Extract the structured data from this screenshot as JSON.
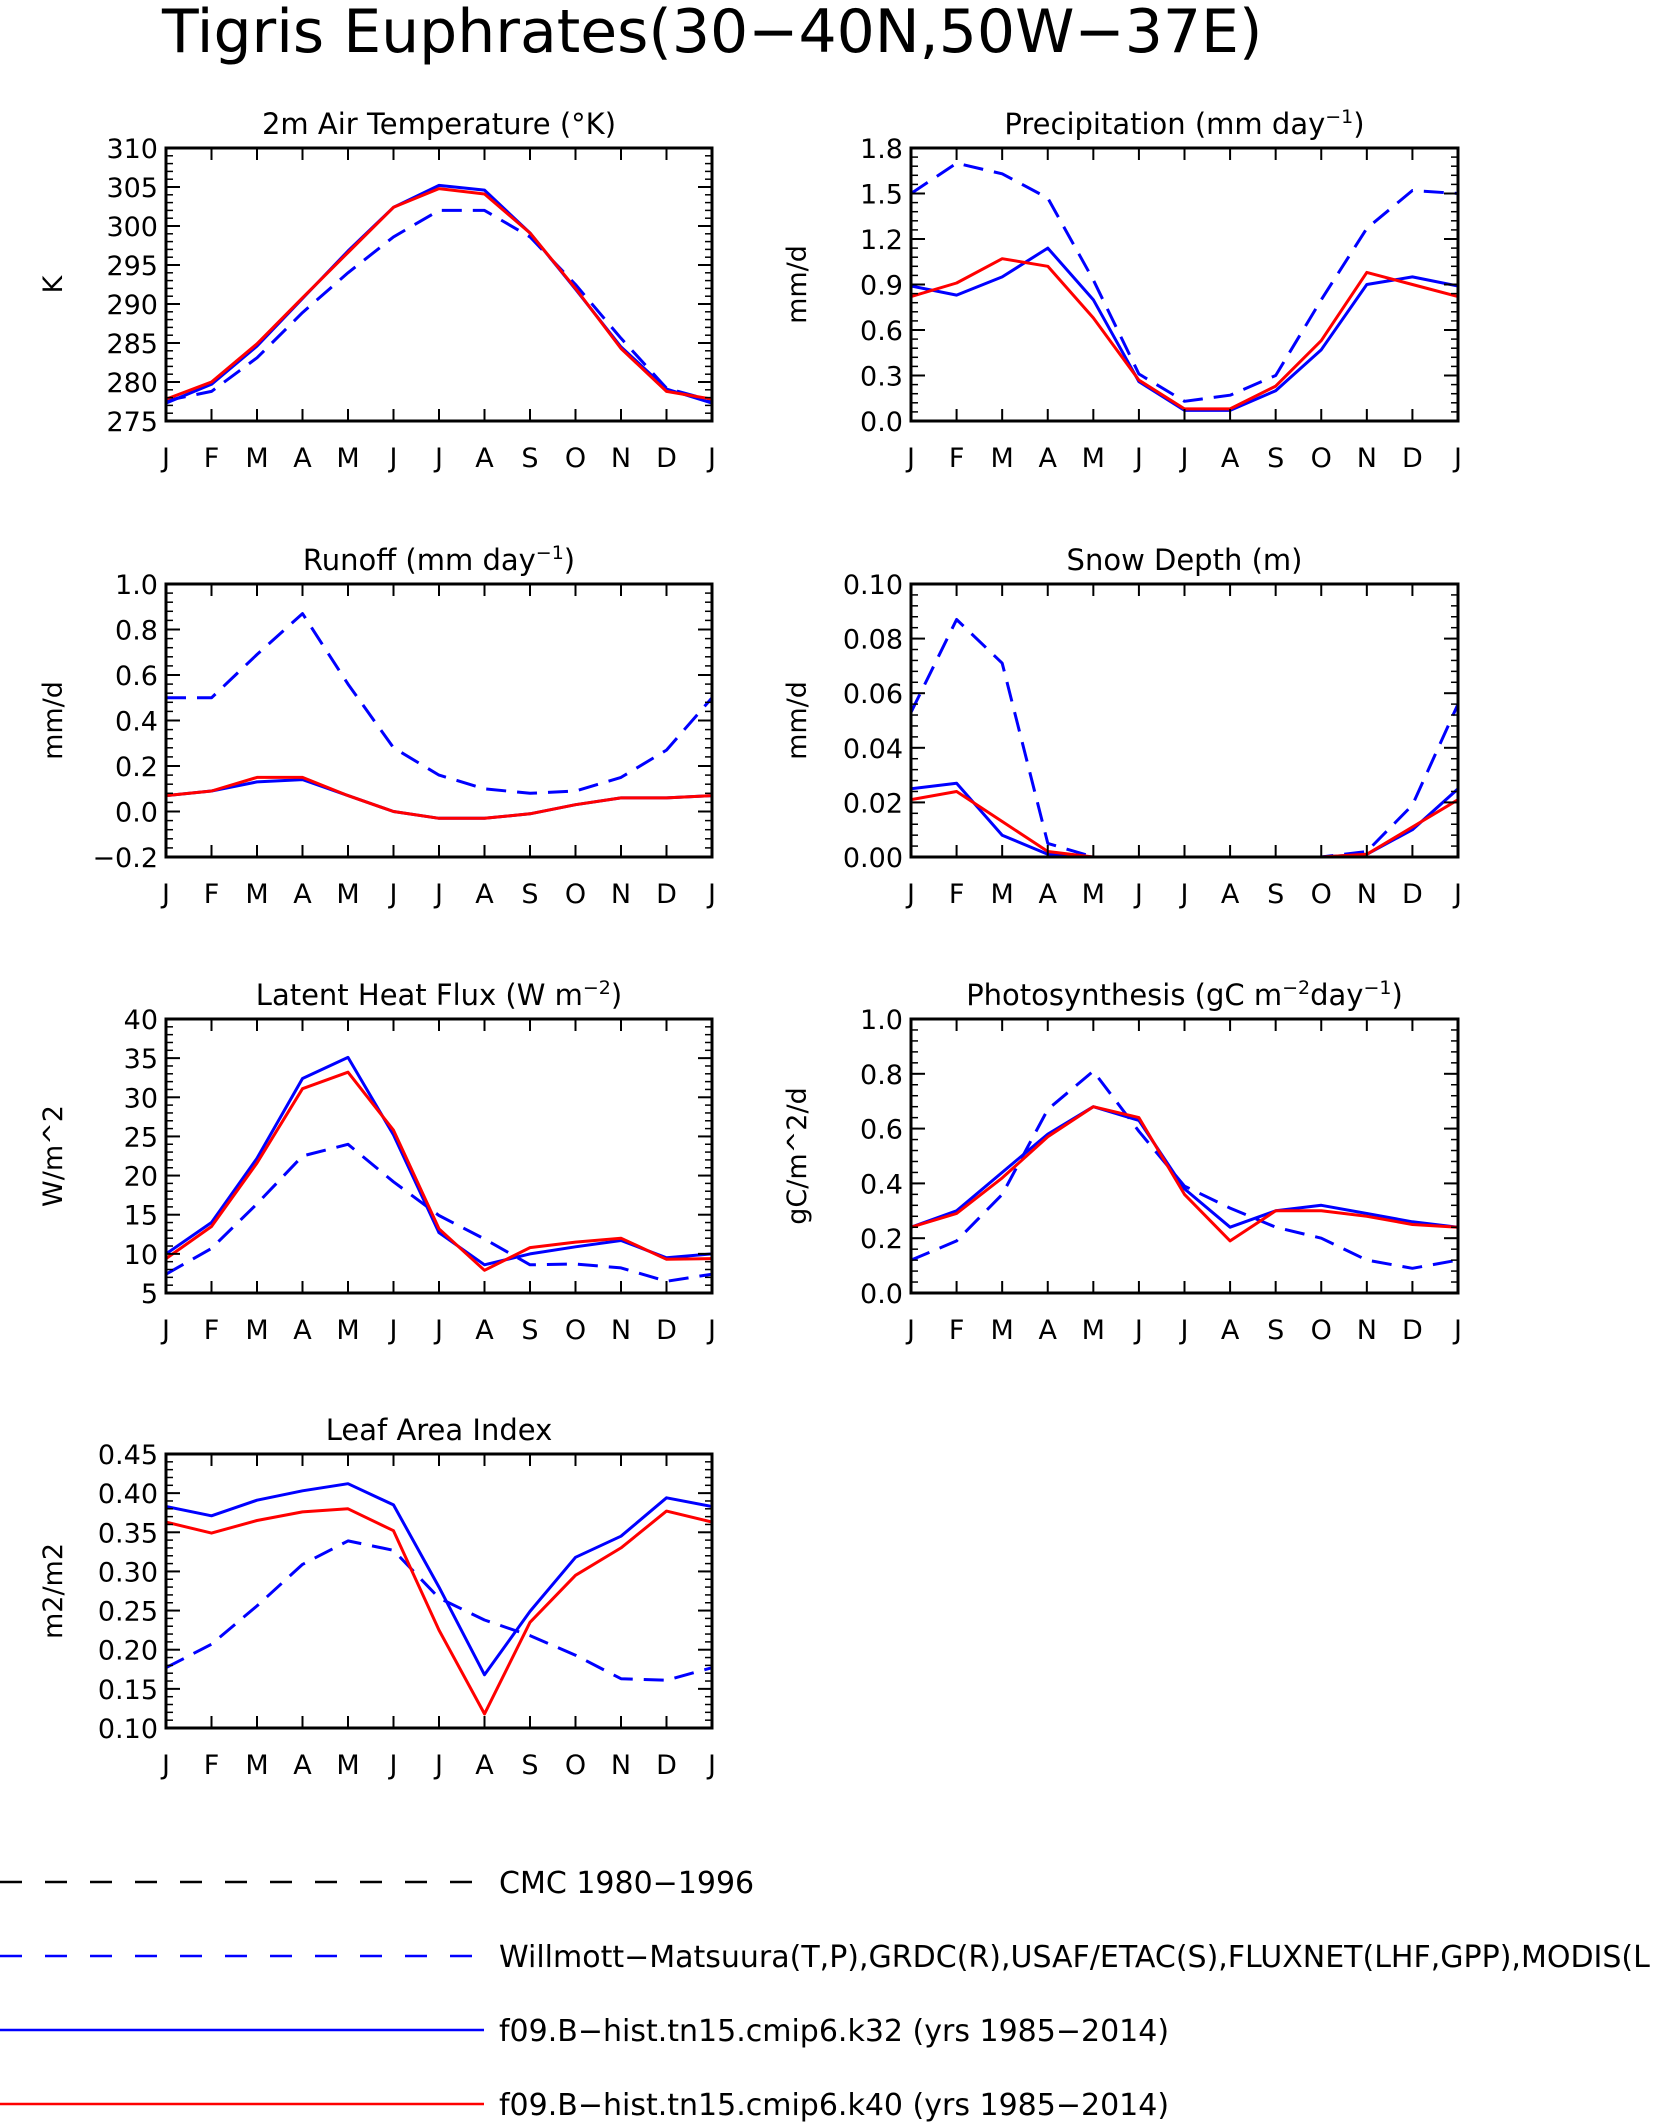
{
  "figure_title": "Tigris Euphrates(30−40N,50W−37E)",
  "legend": [
    {
      "label": "CMC 1980−1996",
      "color": "#000000",
      "dash": true
    },
    {
      "label": "Willmott−Matsuura(T,P),GRDC(R),USAF/ETAC(S),FLUXNET(LHF,GPP),MODIS(L",
      "color": "#0000ff",
      "dash": true
    },
    {
      "label": "f09.B−hist.tn15.cmip6.k32 (yrs 1985−2014)",
      "color": "#0000ff",
      "dash": false
    },
    {
      "label": "f09.B−hist.tn15.cmip6.k40 (yrs 1985−2014)",
      "color": "#ff0000",
      "dash": false
    }
  ],
  "chart_data": [
    {
      "type": "line",
      "title": "2m Air Temperature (°K)",
      "ylabel": "K",
      "ylim": [
        275,
        310
      ],
      "yticks": [
        275,
        280,
        285,
        290,
        295,
        300,
        305,
        310
      ],
      "ytick_labels": [
        "275",
        "280",
        "285",
        "290",
        "295",
        "300",
        "305",
        "310"
      ],
      "categories": [
        "J",
        "F",
        "M",
        "A",
        "M",
        "J",
        "J",
        "A",
        "S",
        "O",
        "N",
        "D",
        "J"
      ],
      "series": [
        {
          "name": "Willmott−Matsuura(T,P),GRDC(R),USAF/ETAC(S),FLUXNET(LHF,GPP),MODIS(L",
          "color": "#0000ff",
          "dash": true,
          "values": [
            277.6,
            278.8,
            283.1,
            288.9,
            294.0,
            298.6,
            302.0,
            302.0,
            298.6,
            292.5,
            285.6,
            279.2,
            277.6
          ]
        },
        {
          "name": "f09.B−hist.tn15.cmip6.k32 (yrs 1985−2014)",
          "color": "#0000ff",
          "dash": false,
          "values": [
            277.3,
            279.7,
            284.6,
            290.7,
            296.8,
            302.4,
            305.2,
            304.6,
            299.1,
            291.9,
            284.5,
            279.1,
            277.3
          ]
        },
        {
          "name": "f09.B−hist.tn15.cmip6.k40 (yrs 1985−2014)",
          "color": "#ff0000",
          "dash": false,
          "values": [
            277.8,
            280.0,
            284.9,
            290.8,
            296.6,
            302.4,
            304.8,
            304.1,
            299.1,
            292.0,
            284.3,
            278.8,
            277.8
          ]
        }
      ]
    },
    {
      "type": "line",
      "title": "Precipitation (mm day",
      "title_sup": "−1",
      "title_end": ")",
      "ylabel": "mm/d",
      "ylim": [
        0,
        1.8
      ],
      "yticks": [
        0,
        0.3,
        0.6,
        0.9,
        1.2,
        1.5,
        1.8
      ],
      "ytick_labels": [
        "0.0",
        "0.3",
        "0.6",
        "0.9",
        "1.2",
        "1.5",
        "1.8"
      ],
      "categories": [
        "J",
        "F",
        "M",
        "A",
        "M",
        "J",
        "J",
        "A",
        "S",
        "O",
        "N",
        "D",
        "J"
      ],
      "series": [
        {
          "name": "Willmott−Matsuura(T,P),GRDC(R),USAF/ETAC(S),FLUXNET(LHF,GPP),MODIS(L",
          "color": "#0000ff",
          "dash": true,
          "values": [
            1.5,
            1.7,
            1.63,
            1.47,
            0.93,
            0.31,
            0.13,
            0.17,
            0.3,
            0.8,
            1.27,
            1.52,
            1.5
          ]
        },
        {
          "name": "f09.B−hist.tn15.cmip6.k32 (yrs 1985−2014)",
          "color": "#0000ff",
          "dash": false,
          "values": [
            0.89,
            0.83,
            0.95,
            1.14,
            0.8,
            0.26,
            0.07,
            0.07,
            0.2,
            0.47,
            0.9,
            0.95,
            0.89
          ]
        },
        {
          "name": "f09.B−hist.tn15.cmip6.k40 (yrs 1985−2014)",
          "color": "#ff0000",
          "dash": false,
          "values": [
            0.82,
            0.91,
            1.07,
            1.02,
            0.68,
            0.27,
            0.08,
            0.08,
            0.23,
            0.53,
            0.98,
            0.9,
            0.82
          ]
        }
      ]
    },
    {
      "type": "line",
      "title": "Runoff (mm day",
      "title_sup": "−1",
      "title_end": ")",
      "ylabel": "mm/d",
      "ylim": [
        -0.2,
        1.0
      ],
      "yticks": [
        -0.2,
        0,
        0.2,
        0.4,
        0.6,
        0.8,
        1.0
      ],
      "ytick_labels": [
        "−0.2",
        "0.0",
        "0.2",
        "0.4",
        "0.6",
        "0.8",
        "1.0"
      ],
      "categories": [
        "J",
        "F",
        "M",
        "A",
        "M",
        "J",
        "J",
        "A",
        "S",
        "O",
        "N",
        "D",
        "J"
      ],
      "series": [
        {
          "name": "Willmott−Matsuura(T,P),GRDC(R),USAF/ETAC(S),FLUXNET(LHF,GPP),MODIS(L",
          "color": "#0000ff",
          "dash": true,
          "values": [
            0.5,
            0.5,
            0.69,
            0.87,
            0.56,
            0.28,
            0.16,
            0.1,
            0.08,
            0.09,
            0.15,
            0.27,
            0.5
          ]
        },
        {
          "name": "f09.B−hist.tn15.cmip6.k32 (yrs 1985−2014)",
          "color": "#0000ff",
          "dash": false,
          "values": [
            0.07,
            0.09,
            0.13,
            0.14,
            0.07,
            0.0,
            -0.03,
            -0.03,
            -0.01,
            0.03,
            0.06,
            0.06,
            0.07
          ]
        },
        {
          "name": "f09.B−hist.tn15.cmip6.k40 (yrs 1985−2014)",
          "color": "#ff0000",
          "dash": false,
          "values": [
            0.07,
            0.09,
            0.15,
            0.15,
            0.07,
            0.0,
            -0.03,
            -0.03,
            -0.01,
            0.03,
            0.06,
            0.06,
            0.07
          ]
        }
      ]
    },
    {
      "type": "line",
      "title": "Snow Depth (m)",
      "ylabel": "mm/d",
      "ylim": [
        0,
        0.1
      ],
      "yticks": [
        0,
        0.02,
        0.04,
        0.06,
        0.08,
        0.1
      ],
      "ytick_labels": [
        "0.00",
        "0.02",
        "0.04",
        "0.06",
        "0.08",
        "0.10"
      ],
      "categories": [
        "J",
        "F",
        "M",
        "A",
        "M",
        "J",
        "J",
        "A",
        "S",
        "O",
        "N",
        "D",
        "J"
      ],
      "series": [
        {
          "name": "CMC 1980−1996",
          "color": "#000000",
          "dash": true,
          "values": [
            0,
            0,
            0,
            0,
            0,
            0,
            0,
            0,
            0,
            0,
            0,
            0,
            0
          ]
        },
        {
          "name": "Willmott−Matsuura(T,P),GRDC(R),USAF/ETAC(S),FLUXNET(LHF,GPP),MODIS(L",
          "color": "#0000ff",
          "dash": true,
          "values": [
            0.053,
            0.087,
            0.071,
            0.005,
            0.0,
            0,
            0,
            0,
            0,
            0.0,
            0.002,
            0.019,
            0.056
          ]
        },
        {
          "name": "f09.B−hist.tn15.cmip6.k32 (yrs 1985−2014)",
          "color": "#0000ff",
          "dash": false,
          "values": [
            0.025,
            0.027,
            0.008,
            0.001,
            0,
            0,
            0,
            0,
            0,
            0,
            0.001,
            0.01,
            0.025
          ]
        },
        {
          "name": "f09.B−hist.tn15.cmip6.k40 (yrs 1985−2014)",
          "color": "#ff0000",
          "dash": false,
          "values": [
            0.021,
            0.024,
            0.013,
            0.002,
            0,
            0,
            0,
            0,
            0,
            0,
            0.001,
            0.011,
            0.021
          ]
        }
      ]
    },
    {
      "type": "line",
      "title": "Latent Heat Flux (W m",
      "title_sup": "−2",
      "title_end": ")",
      "ylabel": "W/m^2",
      "ylim": [
        5,
        40
      ],
      "yticks": [
        5,
        10,
        15,
        20,
        25,
        30,
        35,
        40
      ],
      "ytick_labels": [
        "5",
        "10",
        "15",
        "20",
        "25",
        "30",
        "35",
        "40"
      ],
      "categories": [
        "J",
        "F",
        "M",
        "A",
        "M",
        "J",
        "J",
        "A",
        "S",
        "O",
        "N",
        "D",
        "J"
      ],
      "series": [
        {
          "name": "Willmott−Matsuura(T,P),GRDC(R),USAF/ETAC(S),FLUXNET(LHF,GPP),MODIS(L",
          "color": "#0000ff",
          "dash": true,
          "values": [
            7.4,
            10.7,
            16.4,
            22.5,
            24.0,
            19.2,
            14.9,
            11.9,
            8.6,
            8.7,
            8.2,
            6.5,
            7.4
          ]
        },
        {
          "name": "f09.B−hist.tn15.cmip6.k32 (yrs 1985−2014)",
          "color": "#0000ff",
          "dash": false,
          "values": [
            10.0,
            14.0,
            22.2,
            32.4,
            35.1,
            25.2,
            12.7,
            8.6,
            10.0,
            10.9,
            11.7,
            9.5,
            10.0
          ]
        },
        {
          "name": "f09.B−hist.tn15.cmip6.k40 (yrs 1985−2014)",
          "color": "#ff0000",
          "dash": false,
          "values": [
            9.4,
            13.5,
            21.6,
            31.1,
            33.2,
            25.8,
            13.2,
            7.9,
            10.8,
            11.5,
            12.0,
            9.3,
            9.4
          ]
        }
      ]
    },
    {
      "type": "line",
      "title": "Photosynthesis (gC m",
      "title_sup": "−2",
      "title_mid": "day",
      "title_sup2": "−1",
      "title_end": ")",
      "ylabel": "gC/m^2/d",
      "ylim": [
        0,
        1.0
      ],
      "yticks": [
        0,
        0.2,
        0.4,
        0.6,
        0.8,
        1.0
      ],
      "ytick_labels": [
        "0.0",
        "0.2",
        "0.4",
        "0.6",
        "0.8",
        "1.0"
      ],
      "categories": [
        "J",
        "F",
        "M",
        "A",
        "M",
        "J",
        "J",
        "A",
        "S",
        "O",
        "N",
        "D",
        "J"
      ],
      "series": [
        {
          "name": "Willmott−Matsuura(T,P),GRDC(R),USAF/ETAC(S),FLUXNET(LHF,GPP),MODIS(L",
          "color": "#0000ff",
          "dash": true,
          "values": [
            0.12,
            0.19,
            0.36,
            0.67,
            0.81,
            0.59,
            0.39,
            0.31,
            0.24,
            0.2,
            0.12,
            0.09,
            0.12
          ]
        },
        {
          "name": "f09.B−hist.tn15.cmip6.k32 (yrs 1985−2014)",
          "color": "#0000ff",
          "dash": false,
          "values": [
            0.24,
            0.3,
            0.44,
            0.58,
            0.68,
            0.63,
            0.38,
            0.24,
            0.3,
            0.32,
            0.29,
            0.26,
            0.24
          ]
        },
        {
          "name": "f09.B−hist.tn15.cmip6.k40 (yrs 1985−2014)",
          "color": "#ff0000",
          "dash": false,
          "values": [
            0.24,
            0.29,
            0.42,
            0.57,
            0.68,
            0.64,
            0.36,
            0.19,
            0.3,
            0.3,
            0.28,
            0.25,
            0.24
          ]
        }
      ]
    },
    {
      "type": "line",
      "title": "Leaf Area Index",
      "ylabel": "m2/m2",
      "ylim": [
        0.1,
        0.45
      ],
      "yticks": [
        0.1,
        0.15,
        0.2,
        0.25,
        0.3,
        0.35,
        0.4,
        0.45
      ],
      "ytick_labels": [
        "0.10",
        "0.15",
        "0.20",
        "0.25",
        "0.30",
        "0.35",
        "0.40",
        "0.45"
      ],
      "categories": [
        "J",
        "F",
        "M",
        "A",
        "M",
        "J",
        "J",
        "A",
        "S",
        "O",
        "N",
        "D",
        "J"
      ],
      "series": [
        {
          "name": "Willmott−Matsuura(T,P),GRDC(R),USAF/ETAC(S),FLUXNET(LHF,GPP),MODIS(L",
          "color": "#0000ff",
          "dash": true,
          "values": [
            0.177,
            0.207,
            0.256,
            0.309,
            0.339,
            0.327,
            0.266,
            0.238,
            0.218,
            0.193,
            0.163,
            0.161,
            0.177
          ]
        },
        {
          "name": "f09.B−hist.tn15.cmip6.k32 (yrs 1985−2014)",
          "color": "#0000ff",
          "dash": false,
          "values": [
            0.383,
            0.371,
            0.391,
            0.403,
            0.412,
            0.385,
            0.28,
            0.168,
            0.249,
            0.318,
            0.345,
            0.394,
            0.383
          ]
        },
        {
          "name": "f09.B−hist.tn15.cmip6.k40 (yrs 1985−2014)",
          "color": "#ff0000",
          "dash": false,
          "values": [
            0.363,
            0.349,
            0.365,
            0.376,
            0.38,
            0.352,
            0.225,
            0.118,
            0.235,
            0.295,
            0.33,
            0.377,
            0.363
          ]
        }
      ]
    }
  ]
}
